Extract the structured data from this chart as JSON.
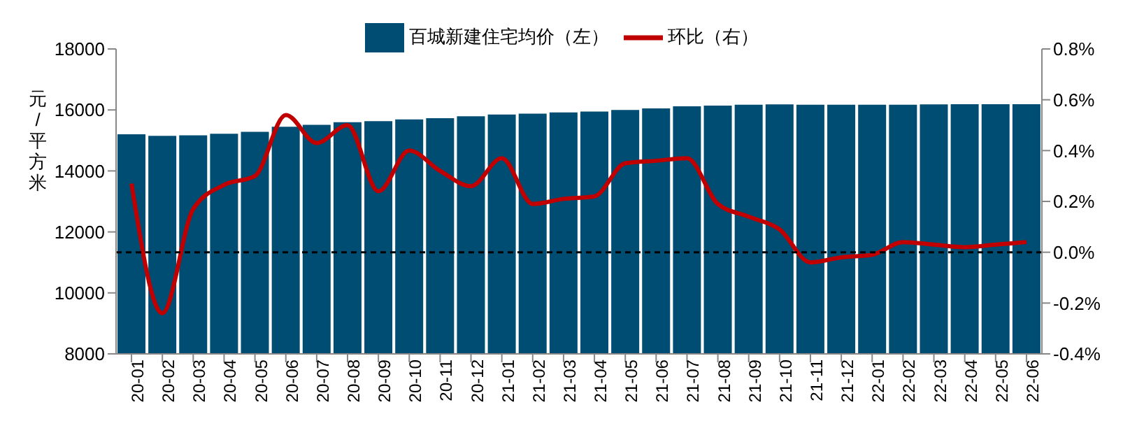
{
  "chart_data": {
    "type": "bar",
    "ylabel": "元/平方米",
    "categories": [
      "20-01",
      "20-02",
      "20-03",
      "20-04",
      "20-05",
      "20-06",
      "20-07",
      "20-08",
      "20-09",
      "20-10",
      "20-11",
      "20-12",
      "21-01",
      "21-02",
      "21-03",
      "21-04",
      "21-05",
      "21-06",
      "21-07",
      "21-08",
      "21-09",
      "21-10",
      "21-11",
      "21-12",
      "22-01",
      "22-02",
      "22-03",
      "22-04",
      "22-05",
      "22-06"
    ],
    "series": [
      {
        "name": "百城新建住宅均价（左）",
        "color": "#004d73",
        "values": [
          15200,
          15150,
          15170,
          15220,
          15280,
          15450,
          15510,
          15600,
          15630,
          15690,
          15730,
          15790,
          15850,
          15880,
          15920,
          15950,
          16000,
          16050,
          16120,
          16140,
          16170,
          16180,
          16170,
          16170,
          16170,
          16170,
          16180,
          16190,
          16190,
          16190
        ]
      },
      {
        "name": "环比（右）",
        "type": "line",
        "axis": "y2",
        "color": "#c00000",
        "values": [
          0.27,
          -0.24,
          0.17,
          0.265,
          0.3,
          0.54,
          0.43,
          0.5,
          0.24,
          0.4,
          0.32,
          0.26,
          0.37,
          0.19,
          0.21,
          0.22,
          0.35,
          0.36,
          0.37,
          0.19,
          0.14,
          0.09,
          -0.04,
          -0.02,
          -0.01,
          0.04,
          0.03,
          0.02,
          0.03,
          0.04
        ]
      }
    ],
    "ylim": [
      8000,
      18000
    ],
    "yticks": [
      8000,
      10000,
      12000,
      14000,
      16000,
      18000
    ],
    "y2lim": [
      -0.4,
      0.8
    ],
    "y2ticks": [
      {
        "value": -0.4,
        "label": "-0.4%"
      },
      {
        "value": -0.2,
        "label": "-0.2%"
      },
      {
        "value": 0,
        "label": "0.0%"
      },
      {
        "value": 0.2,
        "label": "0.2%"
      },
      {
        "value": 0.4,
        "label": "0.4%"
      },
      {
        "value": 0.6,
        "label": "0.6%"
      },
      {
        "value": 0.8,
        "label": "0.8%"
      }
    ],
    "ref_lines": [
      {
        "axis": "y2",
        "value": 0,
        "color": "#000000",
        "line_style": "dashed"
      }
    ],
    "grid": false,
    "legend": "top",
    "marker": "none",
    "line_style": "solid"
  }
}
